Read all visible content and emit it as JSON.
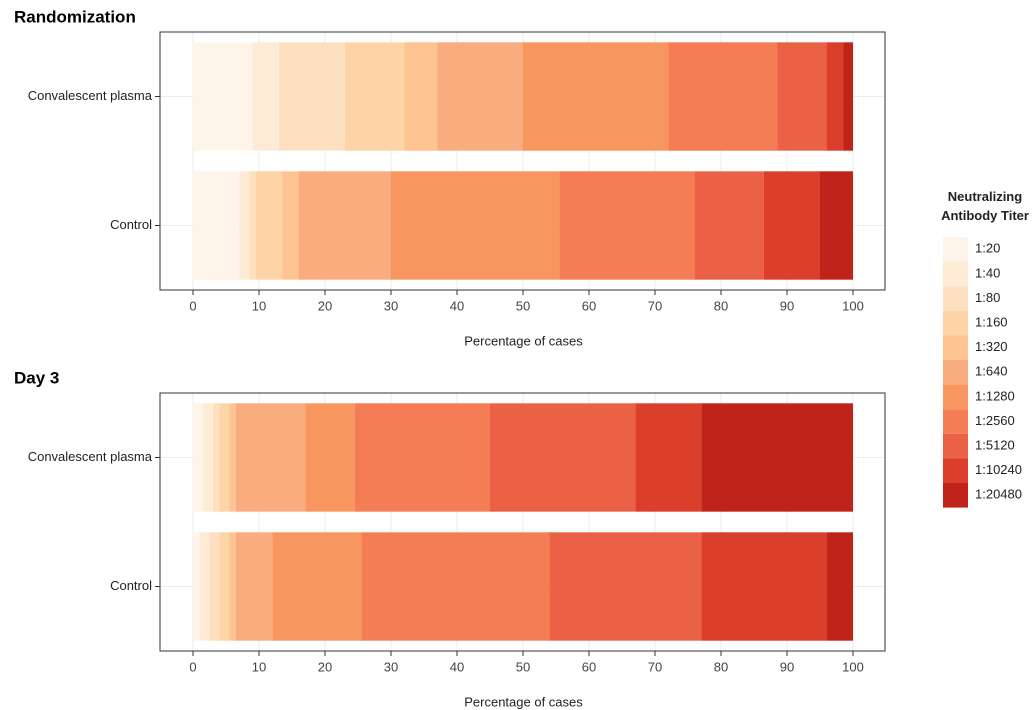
{
  "chart_data": [
    {
      "type": "bar",
      "orientation": "horizontal",
      "stacked": true,
      "title": "Randomization",
      "xlabel": "Percentage of cases",
      "legend_title": "Neutralizing Antibody Titer",
      "legend_position": "right",
      "categories": [
        "Convalescent plasma",
        "Control"
      ],
      "xlim": [
        0,
        100
      ],
      "xticks": [
        0,
        10,
        20,
        30,
        40,
        50,
        60,
        70,
        80,
        90,
        100
      ],
      "grid": true,
      "series": [
        {
          "name": "1:20",
          "color": "#fef4e9",
          "values": [
            9,
            7
          ]
        },
        {
          "name": "1:40",
          "color": "#fdebd6",
          "values": [
            4,
            1.5
          ]
        },
        {
          "name": "1:80",
          "color": "#fde0c0",
          "values": [
            10,
            1
          ]
        },
        {
          "name": "1:160",
          "color": "#fdd4a7",
          "values": [
            9,
            4
          ]
        },
        {
          "name": "1:320",
          "color": "#fdc391",
          "values": [
            5,
            2.5
          ]
        },
        {
          "name": "1:640",
          "color": "#f9ad7e",
          "values": [
            13,
            14
          ]
        },
        {
          "name": "1:1280",
          "color": "#f7965f",
          "values": [
            22,
            25.5
          ]
        },
        {
          "name": "1:2560",
          "color": "#f47d55",
          "values": [
            16.5,
            20.5
          ]
        },
        {
          "name": "1:5120",
          "color": "#ea6146",
          "values": [
            7.5,
            10.5
          ]
        },
        {
          "name": "1:10240",
          "color": "#db3f2b",
          "values": [
            2.5,
            8.5
          ]
        },
        {
          "name": "1:20480",
          "color": "#c0231a",
          "values": [
            1.5,
            5
          ]
        }
      ]
    },
    {
      "type": "bar",
      "orientation": "horizontal",
      "stacked": true,
      "title": "Day 3",
      "xlabel": "Percentage of cases",
      "categories": [
        "Convalescent plasma",
        "Control"
      ],
      "xlim": [
        0,
        100
      ],
      "xticks": [
        0,
        10,
        20,
        30,
        40,
        50,
        60,
        70,
        80,
        90,
        100
      ],
      "grid": true,
      "series": [
        {
          "name": "1:20",
          "color": "#fef4e9",
          "values": [
            1.5,
            1
          ]
        },
        {
          "name": "1:40",
          "color": "#fdebd6",
          "values": [
            1.5,
            1.5
          ]
        },
        {
          "name": "1:80",
          "color": "#fde0c0",
          "values": [
            1,
            1.5
          ]
        },
        {
          "name": "1:160",
          "color": "#fdd4a7",
          "values": [
            1.5,
            1.5
          ]
        },
        {
          "name": "1:320",
          "color": "#fdc391",
          "values": [
            1,
            1
          ]
        },
        {
          "name": "1:640",
          "color": "#f9ad7e",
          "values": [
            10.5,
            5.5
          ]
        },
        {
          "name": "1:1280",
          "color": "#f7965f",
          "values": [
            7.5,
            13.5
          ]
        },
        {
          "name": "1:2560",
          "color": "#f47d55",
          "values": [
            20.5,
            28.5
          ]
        },
        {
          "name": "1:5120",
          "color": "#ea6146",
          "values": [
            22,
            23
          ]
        },
        {
          "name": "1:10240",
          "color": "#db3f2b",
          "values": [
            10,
            19
          ]
        },
        {
          "name": "1:20480",
          "color": "#c0231a",
          "values": [
            23,
            4
          ]
        }
      ]
    }
  ]
}
